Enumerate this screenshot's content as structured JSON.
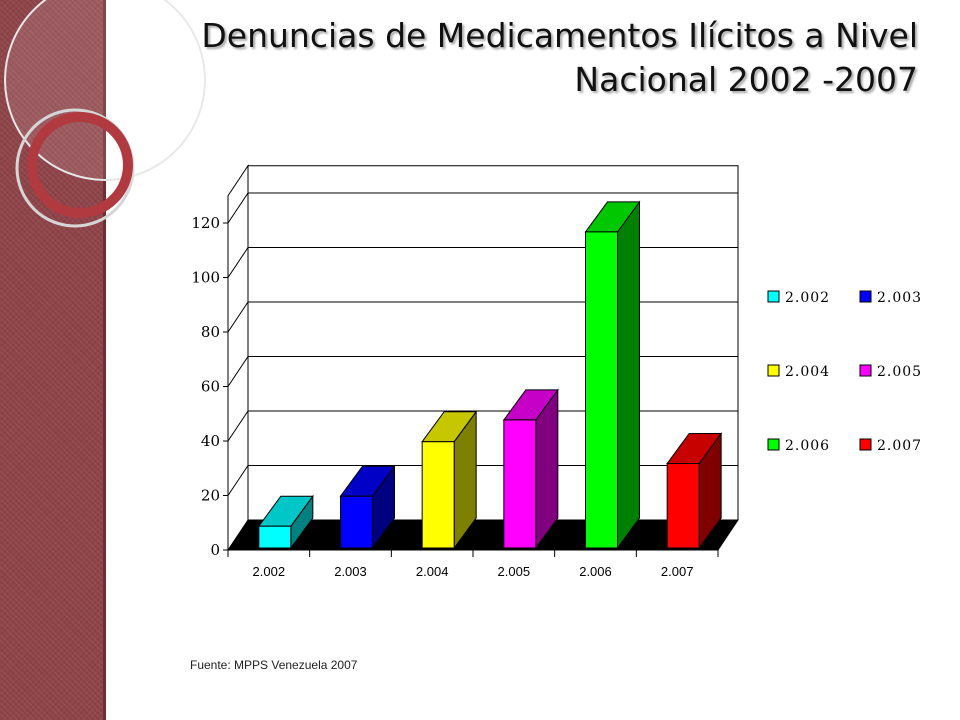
{
  "slide": {
    "title_line1": "Denuncias de Medicamentos Ilícitos a Nivel",
    "title_line2": "Nacional 2002 -2007",
    "source": "Fuente: MPPS Venezuela 2007",
    "sidebar_color": "#8f4449"
  },
  "chart_data": {
    "type": "bar",
    "style": "3d",
    "categories": [
      "2.002",
      "2.003",
      "2.004",
      "2.005",
      "2.006",
      "2.007"
    ],
    "values": [
      8,
      19,
      39,
      47,
      116,
      31
    ],
    "colors": [
      "#00ffff",
      "#0000ff",
      "#ffff00",
      "#ff00ff",
      "#00ff00",
      "#ff0000"
    ],
    "y_ticks": [
      "0",
      "20",
      "40",
      "60",
      "80",
      "100",
      "120"
    ],
    "ylim": [
      0,
      130
    ],
    "grid": true,
    "legend": {
      "position": "right",
      "entries": [
        "2.002",
        "2.003",
        "2.004",
        "2.005",
        "2.006",
        "2.007"
      ]
    }
  }
}
